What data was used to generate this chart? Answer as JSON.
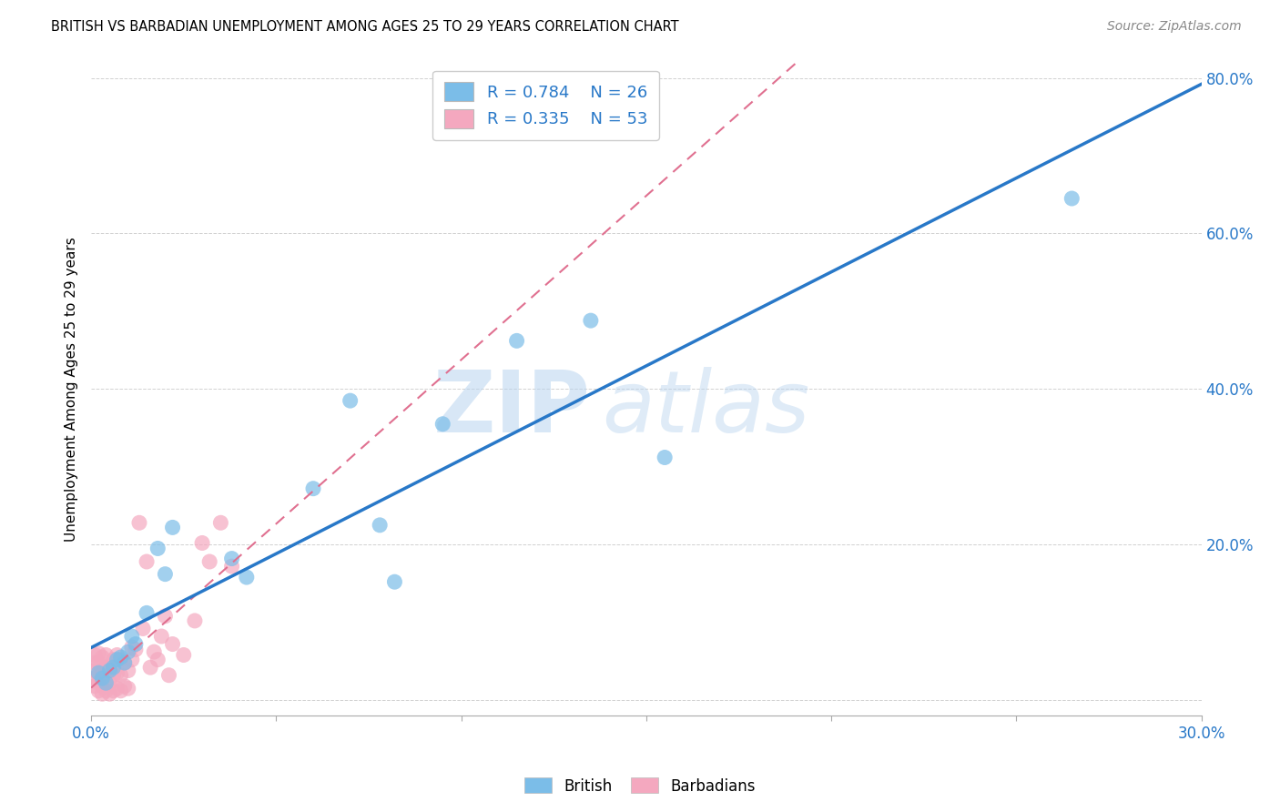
{
  "title": "BRITISH VS BARBADIAN UNEMPLOYMENT AMONG AGES 25 TO 29 YEARS CORRELATION CHART",
  "source": "Source: ZipAtlas.com",
  "ylabel": "Unemployment Among Ages 25 to 29 years",
  "xlim": [
    0.0,
    0.3
  ],
  "ylim": [
    -0.02,
    0.82
  ],
  "xticks": [
    0.0,
    0.05,
    0.1,
    0.15,
    0.2,
    0.25,
    0.3
  ],
  "yticks": [
    0.0,
    0.2,
    0.4,
    0.6,
    0.8
  ],
  "british_color": "#7bbde8",
  "barbadian_color": "#f4a8bf",
  "british_line_color": "#2878c8",
  "barbadian_line_color": "#e07090",
  "legend_R_british": "0.784",
  "legend_N_british": "26",
  "legend_R_barbadian": "0.335",
  "legend_N_barbadian": "53",
  "watermark_zip": "ZIP",
  "watermark_atlas": "atlas",
  "british_x": [
    0.002,
    0.003,
    0.004,
    0.005,
    0.006,
    0.007,
    0.008,
    0.009,
    0.01,
    0.011,
    0.012,
    0.015,
    0.018,
    0.02,
    0.022,
    0.038,
    0.042,
    0.06,
    0.07,
    0.078,
    0.082,
    0.095,
    0.115,
    0.135,
    0.155,
    0.265
  ],
  "british_y": [
    0.035,
    0.028,
    0.022,
    0.038,
    0.042,
    0.052,
    0.055,
    0.048,
    0.062,
    0.082,
    0.072,
    0.112,
    0.195,
    0.162,
    0.222,
    0.182,
    0.158,
    0.272,
    0.385,
    0.225,
    0.152,
    0.355,
    0.462,
    0.488,
    0.312,
    0.645
  ],
  "barbadian_x": [
    0.001,
    0.001,
    0.001,
    0.001,
    0.001,
    0.002,
    0.002,
    0.002,
    0.002,
    0.002,
    0.003,
    0.003,
    0.003,
    0.003,
    0.004,
    0.004,
    0.004,
    0.004,
    0.005,
    0.005,
    0.005,
    0.006,
    0.006,
    0.006,
    0.007,
    0.007,
    0.007,
    0.008,
    0.008,
    0.008,
    0.009,
    0.009,
    0.01,
    0.01,
    0.011,
    0.011,
    0.012,
    0.013,
    0.014,
    0.015,
    0.016,
    0.017,
    0.018,
    0.019,
    0.02,
    0.021,
    0.022,
    0.025,
    0.028,
    0.03,
    0.032,
    0.035,
    0.038
  ],
  "barbadian_y": [
    0.018,
    0.028,
    0.038,
    0.048,
    0.058,
    0.012,
    0.022,
    0.032,
    0.048,
    0.06,
    0.008,
    0.018,
    0.038,
    0.055,
    0.012,
    0.025,
    0.042,
    0.058,
    0.008,
    0.022,
    0.042,
    0.012,
    0.032,
    0.052,
    0.015,
    0.035,
    0.058,
    0.012,
    0.032,
    0.052,
    0.018,
    0.048,
    0.015,
    0.038,
    0.052,
    0.068,
    0.065,
    0.228,
    0.092,
    0.178,
    0.042,
    0.062,
    0.052,
    0.082,
    0.108,
    0.032,
    0.072,
    0.058,
    0.102,
    0.202,
    0.178,
    0.228,
    0.172
  ]
}
